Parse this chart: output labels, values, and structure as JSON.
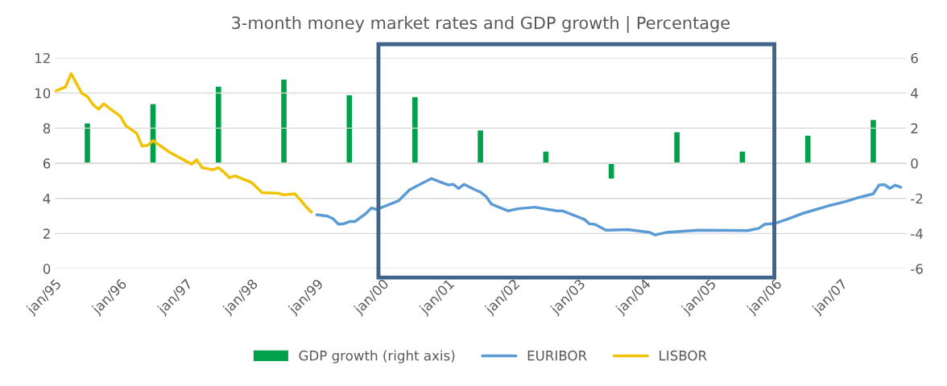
{
  "chart_data": {
    "type": "line",
    "title": "3-month money market rates and GDP growth | Percentage",
    "xlim": [
      "1995-01",
      "2008-01"
    ],
    "xticks": [
      {
        "value": "1995-01",
        "label": "jan/95"
      },
      {
        "value": "1996-01",
        "label": "jan/96"
      },
      {
        "value": "1997-01",
        "label": "jan/97"
      },
      {
        "value": "1998-01",
        "label": "jan/98"
      },
      {
        "value": "1999-01",
        "label": "jan/99"
      },
      {
        "value": "2000-01",
        "label": "jan/00"
      },
      {
        "value": "2001-01",
        "label": "jan/01"
      },
      {
        "value": "2002-01",
        "label": "jan/02"
      },
      {
        "value": "2003-01",
        "label": "jan/03"
      },
      {
        "value": "2004-01",
        "label": "jan/04"
      },
      {
        "value": "2005-01",
        "label": "jan/05"
      },
      {
        "value": "2006-01",
        "label": "jan/06"
      },
      {
        "value": "2007-01",
        "label": "jan/07"
      }
    ],
    "ylim": [
      0,
      12
    ],
    "yticks": [
      0,
      2,
      4,
      6,
      8,
      10,
      12
    ],
    "y2lim": [
      -6,
      6
    ],
    "y2ticks": [
      -6,
      -4,
      -2,
      0,
      2,
      4,
      6
    ],
    "grid": "y",
    "legend": "bottom",
    "series": [
      {
        "name": "GDP growth (right axis)",
        "type": "bar",
        "axis": "y2",
        "color": "#00a14b",
        "x": [
          "1995-07",
          "1996-07",
          "1997-07",
          "1998-07",
          "1999-07",
          "2000-07",
          "2001-07",
          "2002-07",
          "2003-07",
          "2004-07",
          "2005-07",
          "2006-07",
          "2007-07"
        ],
        "values": [
          2.3,
          3.4,
          4.4,
          4.8,
          3.9,
          3.8,
          1.9,
          0.7,
          -0.9,
          1.8,
          0.7,
          1.6,
          2.5
        ]
      },
      {
        "name": "EURIBOR",
        "color": "#5b9bd5",
        "x": [
          "1999-01",
          "1999-03",
          "1999-04",
          "1999-05",
          "1999-06",
          "1999-07",
          "1999-08",
          "1999-10",
          "1999-11",
          "1999-12",
          "2000-04",
          "2000-06",
          "2000-07",
          "2000-10",
          "2001-01",
          "2001-02",
          "2001-03",
          "2001-04",
          "2001-06",
          "2001-07",
          "2001-08",
          "2001-09",
          "2001-12",
          "2002-02",
          "2002-05",
          "2002-09",
          "2002-10",
          "2003-01",
          "2003-02",
          "2003-03",
          "2003-04",
          "2003-06",
          "2003-10",
          "2004-02",
          "2004-03",
          "2004-05",
          "2004-11",
          "2005-08",
          "2005-10",
          "2005-11",
          "2006-01",
          "2006-03",
          "2006-04",
          "2006-06",
          "2006-11",
          "2007-02",
          "2007-04",
          "2007-07",
          "2007-08",
          "2007-09",
          "2007-10",
          "2007-11",
          "2007-12"
        ],
        "values": [
          3.07,
          2.99,
          2.84,
          2.53,
          2.56,
          2.68,
          2.68,
          3.14,
          3.45,
          3.37,
          3.87,
          4.49,
          4.65,
          5.13,
          4.77,
          4.8,
          4.56,
          4.8,
          4.49,
          4.36,
          4.11,
          3.67,
          3.29,
          3.42,
          3.5,
          3.29,
          3.29,
          2.93,
          2.8,
          2.55,
          2.52,
          2.19,
          2.22,
          2.06,
          1.92,
          2.06,
          2.19,
          2.17,
          2.3,
          2.52,
          2.58,
          2.79,
          2.91,
          3.14,
          3.6,
          3.83,
          4.03,
          4.26,
          4.75,
          4.79,
          4.57,
          4.75,
          4.63
        ]
      },
      {
        "name": "LISBOR",
        "color": "#f2c200",
        "x": [
          "1995-01",
          "1995-03",
          "1995-04",
          "1995-06",
          "1995-07",
          "1995-08",
          "1995-09",
          "1995-10",
          "1995-11",
          "1996-01",
          "1996-02",
          "1996-04",
          "1996-05",
          "1996-06",
          "1996-07",
          "1996-10",
          "1997-02",
          "1997-03",
          "1997-04",
          "1997-06",
          "1997-07",
          "1997-08",
          "1997-09",
          "1997-10",
          "1998-01",
          "1998-03",
          "1998-06",
          "1998-07",
          "1998-09",
          "1998-10",
          "1998-11",
          "1998-12"
        ],
        "values": [
          10.1,
          10.35,
          11.1,
          9.97,
          9.8,
          9.35,
          9.08,
          9.39,
          9.13,
          8.67,
          8.13,
          7.7,
          6.98,
          7.02,
          7.29,
          6.63,
          5.95,
          6.2,
          5.75,
          5.63,
          5.75,
          5.49,
          5.18,
          5.29,
          4.91,
          4.33,
          4.29,
          4.2,
          4.26,
          3.91,
          3.53,
          3.22
        ]
      }
    ]
  }
}
